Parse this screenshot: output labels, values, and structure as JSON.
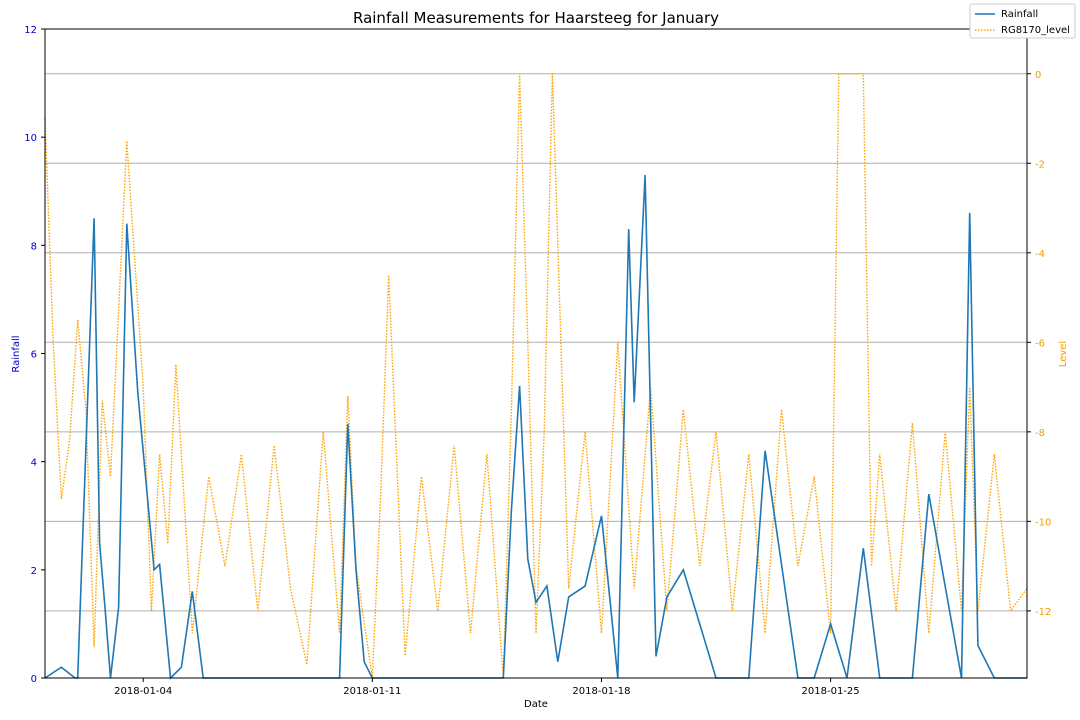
{
  "chart_data": {
    "type": "line",
    "title": "Rainfall Measurements for Haarsteeg for January",
    "xlabel": "Date",
    "ylabel_left": "Rainfall",
    "ylabel_right": "Level",
    "x_ticks": [
      "2018-01-04",
      "2018-01-11",
      "2018-01-18",
      "2018-01-25"
    ],
    "xlim": [
      "2018-01-01",
      "2018-01-31"
    ],
    "ylim_left": [
      0,
      12
    ],
    "ylim_right": [
      -13.5,
      1
    ],
    "y_ticks_left": [
      "0",
      "2",
      "4",
      "6",
      "8",
      "10",
      "12"
    ],
    "y_ticks_right": [
      "-12",
      "-10",
      "-8",
      "-6",
      "-4",
      "-2",
      "0"
    ],
    "grid": "horizontal lines on right axis",
    "legend_position": "top-right",
    "colors": {
      "rainfall": "#1f77b4",
      "level": "#ffa500",
      "left_ticks": "#0000cc"
    },
    "series": [
      {
        "name": "Rainfall",
        "axis": "left",
        "style": "solid",
        "x": [
          "2018-01-01",
          "2018-01-01 12:00",
          "2018-01-01 22:00",
          "2018-01-02",
          "2018-01-02 12:00",
          "2018-01-02 16:00",
          "2018-01-02 20:00",
          "2018-01-03",
          "2018-01-03 06:00",
          "2018-01-03 12:00",
          "2018-01-03 20:00",
          "2018-01-04 08:00",
          "2018-01-04 12:00",
          "2018-01-04 20:00",
          "2018-01-05 04:00",
          "2018-01-05 12:00",
          "2018-01-05 20:00",
          "2018-01-07",
          "2018-01-10",
          "2018-01-10 06:00",
          "2018-01-10 12:00",
          "2018-01-10 18:00",
          "2018-01-11",
          "2018-01-15",
          "2018-01-15 06:00",
          "2018-01-15 12:00",
          "2018-01-15 18:00",
          "2018-01-16",
          "2018-01-16 08:00",
          "2018-01-16 16:00",
          "2018-01-17",
          "2018-01-17 12:00",
          "2018-01-18",
          "2018-01-18 12:00",
          "2018-01-18 20:00",
          "2018-01-19",
          "2018-01-19 08:00",
          "2018-01-19 16:00",
          "2018-01-20",
          "2018-01-20 12:00",
          "2018-01-21",
          "2018-01-21 12:00",
          "2018-01-22",
          "2018-01-22 12:00",
          "2018-01-23",
          "2018-01-24",
          "2018-01-24 12:00",
          "2018-01-25",
          "2018-01-25 12:00",
          "2018-01-26",
          "2018-01-26 12:00",
          "2018-01-27",
          "2018-01-27 12:00",
          "2018-01-28",
          "2018-01-29",
          "2018-01-29 06:00",
          "2018-01-29 12:00",
          "2018-01-30",
          "2018-01-31"
        ],
        "values": [
          0,
          0.2,
          0,
          0,
          8.5,
          2.5,
          1.3,
          0,
          1.3,
          8.4,
          5.3,
          2.0,
          2.1,
          0,
          0.2,
          1.6,
          0,
          0,
          0,
          4.7,
          2.0,
          0.3,
          0,
          0,
          3.1,
          5.4,
          2.2,
          1.4,
          1.7,
          0.3,
          1.5,
          1.7,
          3.0,
          0,
          8.3,
          5.1,
          9.3,
          0.4,
          1.5,
          2.0,
          1.0,
          0,
          0,
          0,
          4.2,
          0,
          0,
          1.0,
          0,
          2.4,
          0,
          0,
          0,
          3.4,
          0,
          8.6,
          0.6,
          0,
          0
        ]
      },
      {
        "name": "RG8170_level",
        "axis": "right",
        "style": "dotted",
        "x": [
          "2018-01-01",
          "2018-01-01 06:00",
          "2018-01-01 12:00",
          "2018-01-01 18:00",
          "2018-01-02",
          "2018-01-02 06:00",
          "2018-01-02 12:00",
          "2018-01-02 18:00",
          "2018-01-03",
          "2018-01-03 12:00",
          "2018-01-04",
          "2018-01-04 06:00",
          "2018-01-04 12:00",
          "2018-01-04 18:00",
          "2018-01-05",
          "2018-01-05 12:00",
          "2018-01-06",
          "2018-01-06 12:00",
          "2018-01-07",
          "2018-01-07 12:00",
          "2018-01-08",
          "2018-01-08 12:00",
          "2018-01-09",
          "2018-01-09 12:00",
          "2018-01-10",
          "2018-01-10 06:00",
          "2018-01-10 12:00",
          "2018-01-11",
          "2018-01-11 06:00",
          "2018-01-11 12:00",
          "2018-01-12",
          "2018-01-12 12:00",
          "2018-01-13",
          "2018-01-13 12:00",
          "2018-01-14",
          "2018-01-14 12:00",
          "2018-01-15",
          "2018-01-15 06:00",
          "2018-01-15 12:00",
          "2018-01-15 18:00",
          "2018-01-16",
          "2018-01-16 06:00",
          "2018-01-16 12:00",
          "2018-01-17",
          "2018-01-17 12:00",
          "2018-01-18",
          "2018-01-18 12:00",
          "2018-01-19",
          "2018-01-19 12:00",
          "2018-01-20",
          "2018-01-20 12:00",
          "2018-01-21",
          "2018-01-21 12:00",
          "2018-01-22",
          "2018-01-22 12:00",
          "2018-01-23",
          "2018-01-23 12:00",
          "2018-01-24",
          "2018-01-24 12:00",
          "2018-01-25",
          "2018-01-25 06:00",
          "2018-01-25 12:00",
          "2018-01-26",
          "2018-01-26 06:00",
          "2018-01-26 12:00",
          "2018-01-27",
          "2018-01-27 12:00",
          "2018-01-28",
          "2018-01-28 12:00",
          "2018-01-29",
          "2018-01-29 06:00",
          "2018-01-29 12:00",
          "2018-01-30",
          "2018-01-30 12:00",
          "2018-01-31"
        ],
        "values": [
          -1.0,
          -6.0,
          -9.5,
          -8.2,
          -5.5,
          -7.5,
          -12.8,
          -7.3,
          -9.0,
          -1.5,
          -7.0,
          -12.0,
          -8.5,
          -10.5,
          -6.5,
          -12.5,
          -9.0,
          -11.0,
          -8.5,
          -12.0,
          -8.3,
          -11.5,
          -13.2,
          -8.0,
          -12.5,
          -7.2,
          -11.0,
          -13.5,
          -9.5,
          -4.5,
          -13.0,
          -9.0,
          -12.0,
          -8.3,
          -12.5,
          -8.5,
          -13.5,
          -7.5,
          0,
          -6.0,
          -12.5,
          -8.0,
          0,
          -11.5,
          -8.0,
          -12.5,
          -6.0,
          -11.5,
          -7.0,
          -12.0,
          -7.5,
          -11.0,
          -8.0,
          -12.0,
          -8.5,
          -12.5,
          -7.5,
          -11.0,
          -9.0,
          -12.5,
          0,
          0,
          0,
          -11.0,
          -8.5,
          -12.0,
          -7.8,
          -12.5,
          -8.0,
          -12.0,
          -7.0,
          -12.0,
          -8.5,
          -12.0,
          -11.5
        ]
      }
    ]
  }
}
